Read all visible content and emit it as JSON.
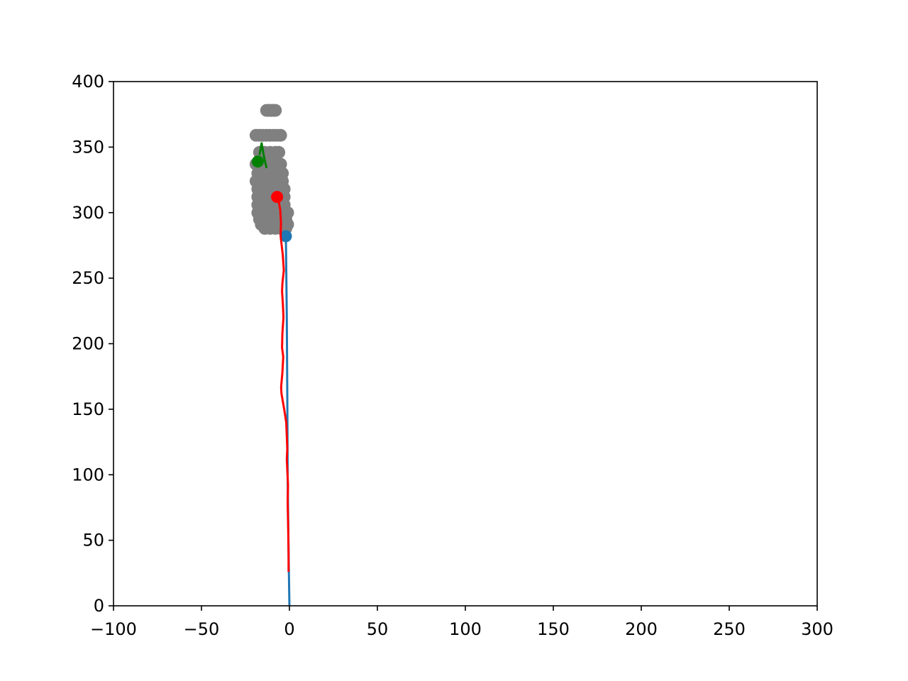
{
  "chart_data": {
    "type": "scatter",
    "title": "",
    "xlabel": "",
    "ylabel": "",
    "xlim": [
      -100,
      300
    ],
    "ylim": [
      0,
      400
    ],
    "x_ticks": [
      -100,
      -50,
      0,
      50,
      100,
      150,
      200,
      250,
      300
    ],
    "y_ticks": [
      0,
      50,
      100,
      150,
      200,
      250,
      300,
      350,
      400
    ],
    "x_tick_labels": [
      "−100",
      "−50",
      "0",
      "50",
      "100",
      "150",
      "200",
      "250",
      "300"
    ],
    "y_tick_labels": [
      "0",
      "50",
      "100",
      "150",
      "200",
      "250",
      "300",
      "350",
      "400"
    ],
    "grid": false,
    "series": [
      {
        "kind": "scatter",
        "color": "#808080",
        "points": [
          [
            -13,
            378
          ],
          [
            -12,
            378
          ],
          [
            -11,
            378
          ],
          [
            -10,
            378
          ],
          [
            -9,
            378
          ],
          [
            -8,
            378
          ],
          [
            -19,
            359
          ],
          [
            -17,
            359
          ],
          [
            -15,
            359
          ],
          [
            -13,
            359
          ],
          [
            -11,
            359
          ],
          [
            -9,
            359
          ],
          [
            -7,
            359
          ],
          [
            -5,
            359
          ],
          [
            -17,
            346
          ],
          [
            -14,
            346
          ],
          [
            -11,
            346
          ],
          [
            -8,
            346
          ],
          [
            -6,
            346
          ],
          [
            -19,
            337
          ],
          [
            -16,
            337
          ],
          [
            -13,
            337
          ],
          [
            -10,
            337
          ],
          [
            -7,
            337
          ],
          [
            -5,
            337
          ],
          [
            -18,
            330
          ],
          [
            -15,
            330
          ],
          [
            -12,
            330
          ],
          [
            -9,
            330
          ],
          [
            -6,
            330
          ],
          [
            -4,
            330
          ],
          [
            -19,
            324
          ],
          [
            -16,
            324
          ],
          [
            -13,
            324
          ],
          [
            -10,
            324
          ],
          [
            -7,
            324
          ],
          [
            -4,
            324
          ],
          [
            -18,
            318
          ],
          [
            -15,
            318
          ],
          [
            -12,
            318
          ],
          [
            -9,
            318
          ],
          [
            -6,
            318
          ],
          [
            -3,
            318
          ],
          [
            -18,
            312
          ],
          [
            -15,
            312
          ],
          [
            -12,
            312
          ],
          [
            -9,
            312
          ],
          [
            -6,
            312
          ],
          [
            -3,
            312
          ],
          [
            -18,
            306
          ],
          [
            -15,
            306
          ],
          [
            -12,
            306
          ],
          [
            -9,
            306
          ],
          [
            -6,
            306
          ],
          [
            -3,
            306
          ],
          [
            -18,
            300
          ],
          [
            -15,
            300
          ],
          [
            -12,
            300
          ],
          [
            -9,
            300
          ],
          [
            -6,
            300
          ],
          [
            -3,
            300
          ],
          [
            -1,
            300
          ],
          [
            -17,
            295
          ],
          [
            -14,
            295
          ],
          [
            -11,
            295
          ],
          [
            -8,
            295
          ],
          [
            -5,
            295
          ],
          [
            -2,
            295
          ],
          [
            -16,
            291
          ],
          [
            -13,
            291
          ],
          [
            -10,
            291
          ],
          [
            -7,
            291
          ],
          [
            -4,
            291
          ],
          [
            -1,
            291
          ],
          [
            -14,
            288
          ],
          [
            -11,
            288
          ],
          [
            -8,
            288
          ],
          [
            -5,
            288
          ],
          [
            -2,
            288
          ]
        ]
      },
      {
        "kind": "line",
        "color": "#1f77b4",
        "points": [
          [
            0,
            0
          ],
          [
            -0.5,
            40
          ],
          [
            -1,
            100
          ],
          [
            -1.2,
            160
          ],
          [
            -1.5,
            220
          ],
          [
            -2,
            282
          ]
        ]
      },
      {
        "kind": "marker",
        "color": "#1f77b4",
        "point": [
          -2,
          282
        ]
      },
      {
        "kind": "line",
        "color": "#ff0000",
        "points": [
          [
            -0.5,
            26
          ],
          [
            -0.5,
            40
          ],
          [
            -0.7,
            58
          ],
          [
            -1,
            80
          ],
          [
            -0.8,
            92
          ],
          [
            -1.5,
            112
          ],
          [
            -1.2,
            120
          ],
          [
            -1.8,
            140
          ],
          [
            -3,
            150
          ],
          [
            -4.5,
            162
          ],
          [
            -4.7,
            167
          ],
          [
            -4,
            178
          ],
          [
            -3.5,
            190
          ],
          [
            -4.2,
            197
          ],
          [
            -4,
            208
          ],
          [
            -3.4,
            220
          ],
          [
            -3.7,
            230
          ],
          [
            -4.2,
            240
          ],
          [
            -4,
            246
          ],
          [
            -3.2,
            256
          ],
          [
            -3.8,
            268
          ],
          [
            -5,
            282
          ],
          [
            -4.8,
            292
          ],
          [
            -5.2,
            302
          ],
          [
            -6,
            308
          ],
          [
            -7,
            312
          ]
        ]
      },
      {
        "kind": "marker",
        "color": "#ff0000",
        "point": [
          -7,
          312
        ]
      },
      {
        "kind": "line",
        "color": "#008000",
        "points": [
          [
            -13,
            334
          ],
          [
            -14.5,
            343
          ],
          [
            -15.8,
            353
          ],
          [
            -16.5,
            348
          ],
          [
            -17,
            344
          ]
        ]
      },
      {
        "kind": "marker",
        "color": "#008000",
        "point": [
          -18,
          339
        ]
      }
    ]
  }
}
